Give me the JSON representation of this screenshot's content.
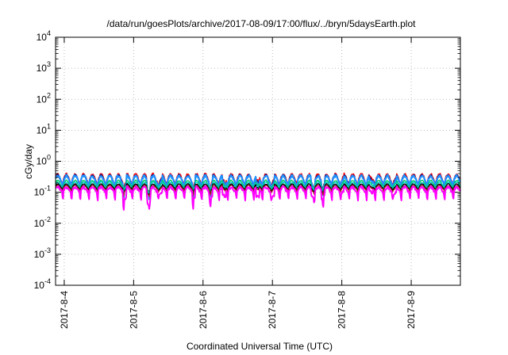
{
  "chart_data": {
    "type": "line",
    "title": "/data/run/goesPlots/archive/2017-08-09/17:00/flux/../bryn/5daysEarth.plot",
    "xlabel": "Coordinated Universal Time (UTC)",
    "ylabel": "cGy/day",
    "yscale": "log",
    "ylim": [
      0.0001,
      10000
    ],
    "xlim": [
      "2017-08-03T21:00",
      "2017-08-09T17:00"
    ],
    "grid": true,
    "legend": "none",
    "x_ticks": [
      "2017-8-4",
      "2017-8-5",
      "2017-8-6",
      "2017-8-7",
      "2017-8-8",
      "2017-8-9"
    ],
    "y_ticks": [
      {
        "base": "10",
        "exp": "4"
      },
      {
        "base": "10",
        "exp": "3"
      },
      {
        "base": "10",
        "exp": "2"
      },
      {
        "base": "10",
        "exp": "1"
      },
      {
        "base": "10",
        "exp": "0"
      },
      {
        "base": "10",
        "exp": "-1"
      },
      {
        "base": "10",
        "exp": "-2"
      },
      {
        "base": "10",
        "exp": "-3"
      },
      {
        "base": "10",
        "exp": "-4"
      }
    ],
    "cycles_per_day": 8,
    "series": [
      {
        "color": "#ff0000",
        "base": 0.3,
        "amplitude": 0.09,
        "dip": 0.45,
        "noise": 0.07,
        "width": 1.6
      },
      {
        "color": "#202080",
        "base": 0.28,
        "amplitude": 0.08,
        "dip": 0.45,
        "noise": 0.07,
        "width": 1.6
      },
      {
        "color": "#1e90ff",
        "base": 0.27,
        "amplitude": 0.07,
        "dip": 0.55,
        "noise": 0.09,
        "width": 2.2
      },
      {
        "color": "#00cc66",
        "base": 0.2,
        "amplitude": 0.04,
        "dip": 0.3,
        "noise": 0.04,
        "width": 1.4
      },
      {
        "color": "#00ced1",
        "base": 0.18,
        "amplitude": 0.03,
        "dip": 0.3,
        "noise": 0.04,
        "width": 1.2
      },
      {
        "color": "#000000",
        "base": 0.16,
        "amplitude": 0.025,
        "dip": 0.3,
        "noise": 0.03,
        "width": 1.4
      },
      {
        "color": "#b22222",
        "base": 0.145,
        "amplitude": 0.02,
        "dip": 0.3,
        "noise": 0.03,
        "width": 1.2
      },
      {
        "color": "#ff00ff",
        "base": 0.125,
        "amplitude": 0.02,
        "dip": 0.6,
        "noise": 0.1,
        "width": 2.0
      }
    ]
  }
}
